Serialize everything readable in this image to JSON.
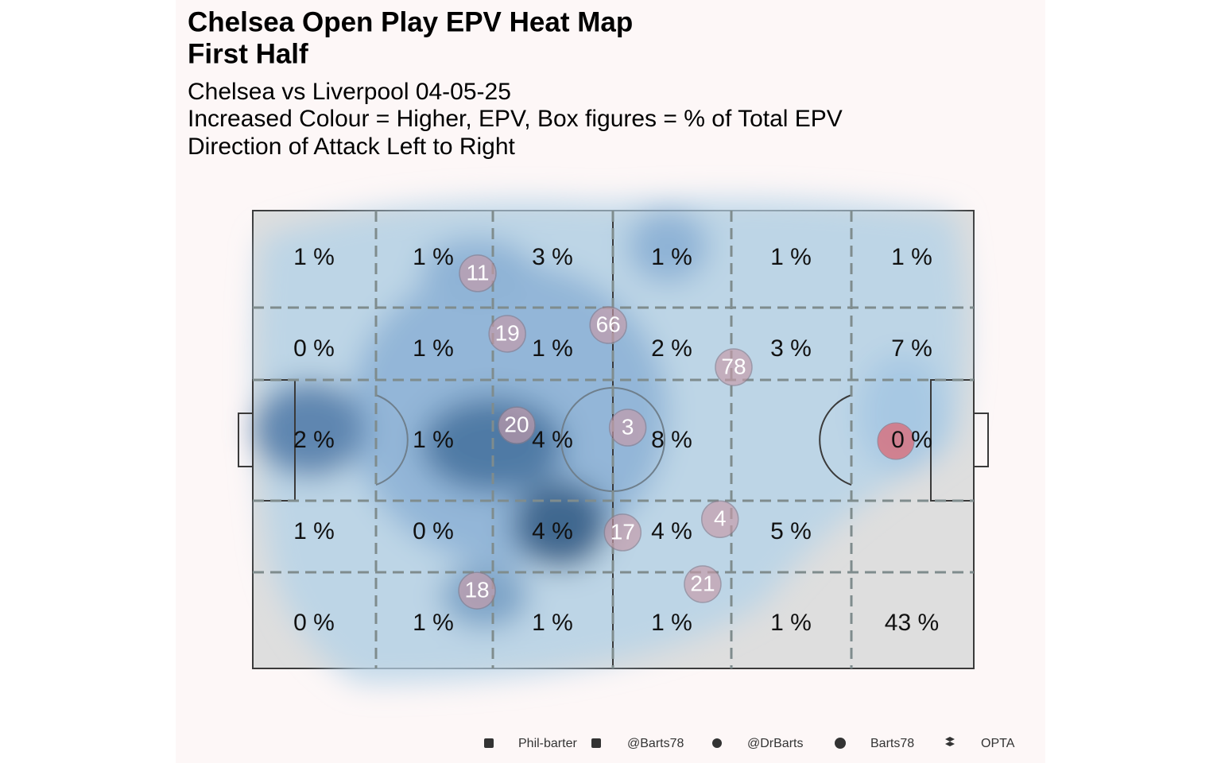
{
  "chart_data": {
    "type": "pitch-grid",
    "title": [
      "Chelsea Open Play EPV Heat Map",
      "First Half"
    ],
    "subtitle": [
      "Chelsea vs Liverpool 04-05-25",
      "Increased Colour = Higher, EPV, Box figures = % of Total EPV",
      "Direction of Attack Left to Right"
    ],
    "values": [
      [
        1,
        1,
        3,
        1,
        1,
        1
      ],
      [
        0,
        1,
        1,
        2,
        3,
        7
      ],
      [
        2,
        1,
        4,
        8,
        null,
        0
      ],
      [
        1,
        0,
        4,
        4,
        5,
        null
      ],
      [
        0,
        1,
        1,
        1,
        1,
        43
      ]
    ],
    "value_labels": [
      [
        "1 %",
        "1 %",
        "3 %",
        "1 %",
        "1 %",
        "1 %"
      ],
      [
        "0 %",
        "1 %",
        "1 %",
        "2 %",
        "3 %",
        "7 %"
      ],
      [
        "2 %",
        "1 %",
        "4 %",
        "8 %",
        null,
        "0 %"
      ],
      [
        "1 %",
        "0 %",
        "4 %",
        "4 %",
        "5 %",
        null
      ],
      [
        "0 %",
        "1 %",
        "1 %",
        "1 %",
        "1 %",
        "43 %"
      ]
    ],
    "xlim": [
      0,
      100
    ],
    "ylim": [
      0,
      100
    ],
    "players": [
      {
        "label": "11",
        "x": 31.2,
        "y": 13.7
      },
      {
        "label": "19",
        "x": 35.3,
        "y": 26.9
      },
      {
        "label": "66",
        "x": 49.3,
        "y": 25.0
      },
      {
        "label": "78",
        "x": 66.7,
        "y": 34.2
      },
      {
        "label": "20",
        "x": 36.6,
        "y": 46.9
      },
      {
        "label": "3",
        "x": 52.0,
        "y": 47.4
      },
      {
        "label": "17",
        "x": 51.3,
        "y": 70.3
      },
      {
        "label": "4",
        "x": 64.8,
        "y": 67.4
      },
      {
        "label": "21",
        "x": 62.4,
        "y": 81.6
      },
      {
        "label": "18",
        "x": 31.1,
        "y": 83.0
      }
    ],
    "footer": [
      "Phil-barter",
      "@Barts78",
      "@DrBarts",
      "Barts78",
      "OPTA"
    ]
  }
}
